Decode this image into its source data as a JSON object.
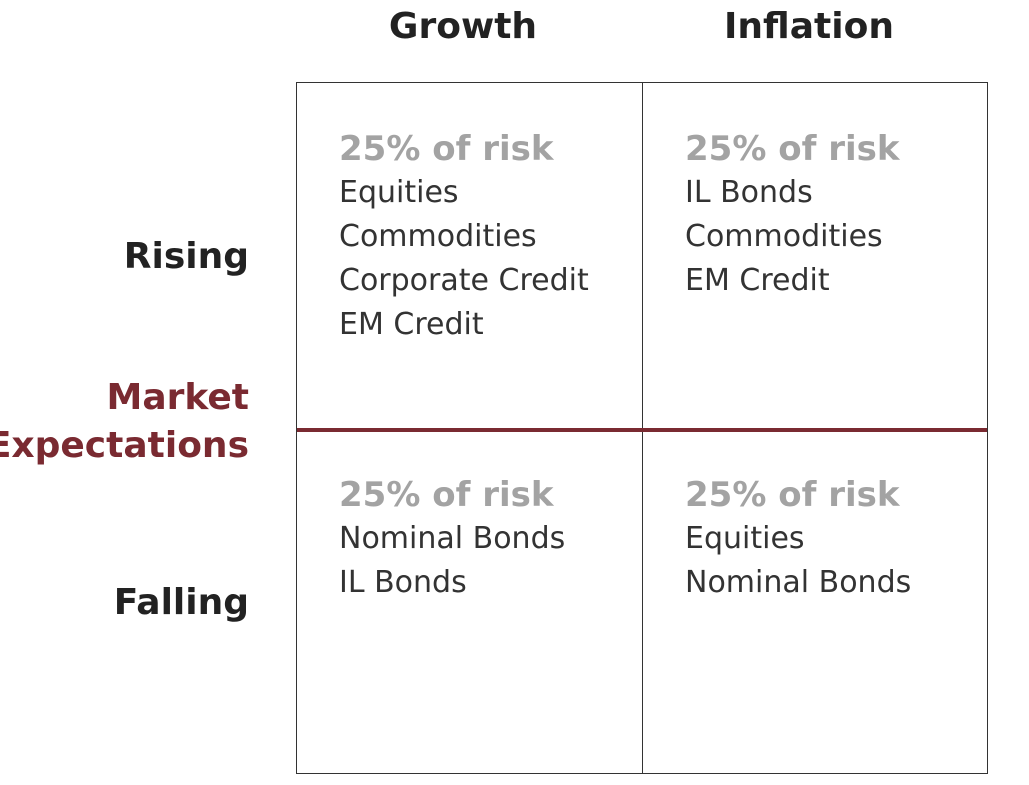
{
  "columns": {
    "growth": "Growth",
    "inflation": "Inflation"
  },
  "rows": {
    "rising": "Rising",
    "falling": "Falling",
    "axis_line1": "Market",
    "axis_line2": "Expectations"
  },
  "colors": {
    "accent": "#7a2a31",
    "risk_text": "#a3a3a3",
    "body_text": "#333333"
  },
  "cells": {
    "rising_growth": {
      "risk": "25% of risk",
      "assets": [
        "Equities",
        "Commodities",
        "Corporate Credit",
        "EM Credit"
      ]
    },
    "rising_inflation": {
      "risk": "25% of risk",
      "assets": [
        "IL Bonds",
        "Commodities",
        "EM Credit"
      ]
    },
    "falling_growth": {
      "risk": "25% of risk",
      "assets": [
        "Nominal Bonds",
        "IL Bonds"
      ]
    },
    "falling_inflation": {
      "risk": "25% of risk",
      "assets": [
        "Equities",
        "Nominal Bonds"
      ]
    }
  }
}
